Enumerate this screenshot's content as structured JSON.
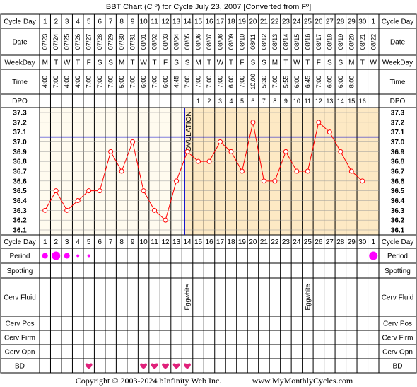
{
  "title": "BBT Chart (C º) for Cycle July 23, 2007  [Converted from Fº]",
  "row_labels": {
    "cycle_day": "Cycle Day",
    "date": "Date",
    "weekday": "WeekDay",
    "time": "Time",
    "dpo": "DPO",
    "period": "Period",
    "spotting": "Spotting",
    "cerv_fluid": "Cerv Fluid",
    "cerv_pos": "Cerv Pos",
    "cerv_firm": "Cerv Firm",
    "cerv_opn": "Cerv Opn",
    "bd": "BD"
  },
  "cycle_days": [
    "1",
    "2",
    "3",
    "4",
    "5",
    "6",
    "7",
    "8",
    "9",
    "10",
    "11",
    "12",
    "13",
    "14",
    "15",
    "16",
    "17",
    "18",
    "19",
    "20",
    "21",
    "22",
    "23",
    "24",
    "25",
    "26",
    "27",
    "28",
    "29",
    "30",
    "1"
  ],
  "dates": [
    "07/23",
    "07/24",
    "07/25",
    "07/26",
    "07/27",
    "07/28",
    "07/29",
    "07/30",
    "07/31",
    "08/01",
    "08/02",
    "08/03",
    "08/04",
    "08/05",
    "08/06",
    "08/07",
    "08/08",
    "08/09",
    "08/10",
    "08/11",
    "08/12",
    "08/13",
    "08/14",
    "08/15",
    "08/16",
    "08/17",
    "08/18",
    "08/19",
    "08/20",
    "08/21",
    "08/22"
  ],
  "weekdays": [
    "M",
    "T",
    "W",
    "T",
    "F",
    "S",
    "S",
    "M",
    "T",
    "W",
    "T",
    "F",
    "S",
    "S",
    "M",
    "T",
    "W",
    "T",
    "F",
    "S",
    "S",
    "M",
    "T",
    "W",
    "T",
    "F",
    "S",
    "S",
    "M",
    "T",
    "W"
  ],
  "times": [
    "4:00",
    "7:00",
    "4:00",
    "4:00",
    "7:00",
    "7:00",
    "7:00",
    "5:00",
    "7:00",
    "6:00",
    "7:00",
    "6:00",
    "4:45",
    "7:00",
    "7:00",
    "7:00",
    "7:00",
    "6:00",
    "7:00",
    "10:00",
    "5:30",
    "7:00",
    "5:55",
    "6:00",
    "6:45",
    "7:00",
    "6:00",
    "6:00",
    "8:00",
    "",
    ""
  ],
  "dpo": [
    "",
    "",
    "",
    "",
    "",
    "",
    "",
    "",
    "",
    "",
    "",
    "",
    "",
    "",
    "1",
    "2",
    "3",
    "4",
    "5",
    "6",
    "7",
    "8",
    "9",
    "10",
    "11",
    "12",
    "13",
    "14",
    "15",
    "16",
    ""
  ],
  "temp_labels": [
    "37.3",
    "37.2",
    "37.1",
    "37.0",
    "36.9",
    "36.8",
    "36.7",
    "36.6",
    "36.5",
    "36.4",
    "36.3",
    "36.2",
    "36.1"
  ],
  "ovulation_label": "OVULATION",
  "cerv_fluid_entries": [
    {
      "day_index": 13,
      "text": "Eggwhite"
    },
    {
      "day_index": 24,
      "text": "Eggwhite"
    }
  ],
  "period_entries": [
    {
      "day_index": 0,
      "size": "medium"
    },
    {
      "day_index": 1,
      "size": "large"
    },
    {
      "day_index": 2,
      "size": "medium"
    },
    {
      "day_index": 3,
      "size": "small"
    },
    {
      "day_index": 4,
      "size": "small"
    },
    {
      "day_index": 30,
      "size": "large"
    }
  ],
  "bd_days": [
    4,
    9,
    10,
    11,
    12,
    13
  ],
  "colors": {
    "grid": "#000000",
    "header_bg": "#ffffff",
    "pre_ovulation_bg": "#fffbef",
    "post_ovulation_bg": "#fde9c4",
    "line": "#ff0000",
    "coverline": "#0000cc",
    "ovulation_line": "#0000cc",
    "period": "#ff00ff",
    "bd": "#e0207a"
  },
  "footer": {
    "copyright": "Copyright © 2003-2024 bInfinity Web Inc.",
    "site": "www.MyMonthlyCycles.com"
  },
  "chart_data": {
    "type": "line",
    "title": "BBT Chart (C º) for Cycle July 23, 2007  [Converted from Fº]",
    "xlabel": "Cycle Day",
    "ylabel": "",
    "x": [
      1,
      2,
      3,
      4,
      5,
      6,
      7,
      8,
      9,
      10,
      11,
      12,
      13,
      14,
      15,
      16,
      17,
      18,
      19,
      20,
      21,
      22,
      23,
      24,
      25,
      26,
      27,
      28,
      29,
      30
    ],
    "series": [
      {
        "values": [
          36.3,
          36.5,
          36.3,
          36.4,
          36.5,
          36.5,
          36.9,
          36.7,
          37.0,
          36.5,
          36.3,
          36.2,
          36.6,
          36.9,
          36.8,
          36.8,
          37.0,
          36.9,
          36.7,
          37.2,
          36.6,
          36.6,
          36.9,
          36.7,
          36.7,
          37.2,
          37.1,
          36.9,
          36.7,
          36.6
        ]
      }
    ],
    "ylim": [
      36.1,
      37.3
    ],
    "coverline": 37.05,
    "ovulation_day": 14,
    "grid": true
  }
}
